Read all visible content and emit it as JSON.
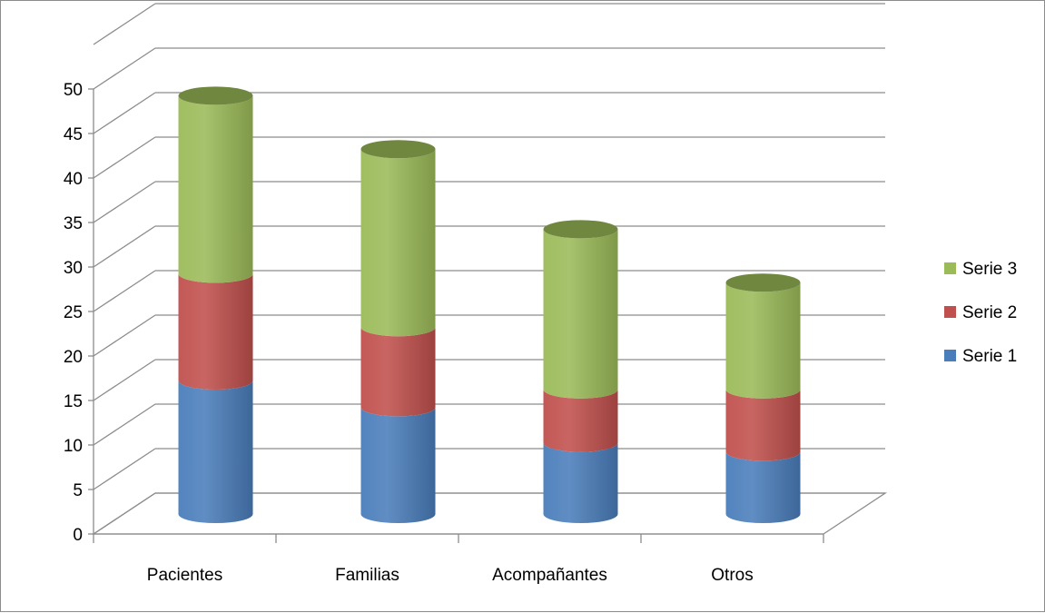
{
  "chart_data": {
    "type": "bar",
    "subtype": "stacked-3d-cylinder",
    "title": "",
    "xlabel": "",
    "ylabel": "",
    "categories": [
      "Pacientes",
      "Familias",
      "Acompañantes",
      "Otros"
    ],
    "series": [
      {
        "name": "Serie 1",
        "color": "#4a7ebb",
        "values": [
          15,
          12,
          8,
          7
        ]
      },
      {
        "name": "Serie 2",
        "color": "#c0504d",
        "values": [
          12,
          9,
          6,
          7
        ]
      },
      {
        "name": "Serie 3",
        "color": "#9bbb59",
        "values": [
          20,
          20,
          18,
          12
        ]
      }
    ],
    "ylim": [
      0,
      50
    ],
    "yticks": [
      "0",
      "5",
      "10",
      "15",
      "20",
      "25",
      "30",
      "35",
      "40",
      "45",
      "50"
    ],
    "grid": true,
    "legend_position": "right"
  }
}
